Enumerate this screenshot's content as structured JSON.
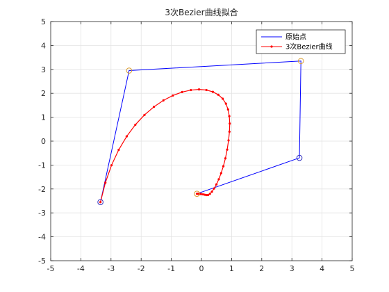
{
  "chart_data": {
    "type": "line",
    "title": "3次Bezier曲线拟合",
    "xlabel": "",
    "ylabel": "",
    "xlim": [
      -5,
      5
    ],
    "ylim": [
      -5,
      5
    ],
    "xticks": [
      -5,
      -4,
      -3,
      -2,
      -1,
      0,
      1,
      2,
      3,
      4,
      5
    ],
    "yticks": [
      -5,
      -4,
      -3,
      -2,
      -1,
      0,
      1,
      2,
      3,
      4,
      5
    ],
    "grid": true,
    "legend_position": "top-right",
    "series": [
      {
        "name": "原始点",
        "color": "#0000ff",
        "style": "solid-line",
        "x": [
          -3.35,
          -2.4,
          3.3,
          3.25,
          -0.15
        ],
        "y": [
          -2.55,
          2.95,
          3.35,
          -0.7,
          -2.2
        ]
      },
      {
        "name": "3次Bezier曲线",
        "color": "#ff0000",
        "style": "line-with-dot-markers",
        "x": [
          -3.35,
          -3.186,
          -2.983,
          -2.745,
          -2.48,
          -2.193,
          -1.89,
          -1.577,
          -1.261,
          -0.947,
          -0.641,
          -0.35,
          -0.08,
          0.164,
          0.378,
          0.559,
          0.705,
          0.812,
          0.883,
          0.924,
          0.939,
          0.929,
          0.899,
          0.853,
          0.795,
          0.727,
          0.652,
          0.575,
          0.497,
          0.42,
          0.347,
          0.28,
          0.218,
          0.16,
          0.106,
          0.05,
          -0.015,
          -0.055,
          -0.09,
          -0.125,
          -0.15
        ],
        "y": [
          -2.55,
          -1.736,
          -1.008,
          -0.364,
          0.199,
          0.685,
          1.095,
          1.434,
          1.704,
          1.909,
          2.052,
          2.135,
          2.163,
          2.137,
          2.061,
          1.939,
          1.773,
          1.567,
          1.322,
          1.044,
          0.734,
          0.395,
          0.031,
          -0.355,
          -0.72,
          -1.049,
          -1.34,
          -1.594,
          -1.808,
          -1.982,
          -2.115,
          -2.206,
          -2.253,
          -2.255,
          -2.24,
          -2.225,
          -2.212,
          -2.205,
          -2.202,
          -2.2,
          -2.2
        ]
      }
    ],
    "markers": [
      {
        "shape": "circle",
        "color": "#d99a2b",
        "x": -2.4,
        "y": 2.95
      },
      {
        "shape": "circle",
        "color": "#d99a2b",
        "x": 3.3,
        "y": 3.35
      },
      {
        "shape": "circle",
        "color": "#d99a2b",
        "x": -0.15,
        "y": -2.2
      },
      {
        "shape": "circle",
        "color": "#3030c0",
        "x": -3.35,
        "y": -2.55
      },
      {
        "shape": "circle",
        "color": "#3030c0",
        "x": 3.25,
        "y": -0.7
      }
    ]
  }
}
